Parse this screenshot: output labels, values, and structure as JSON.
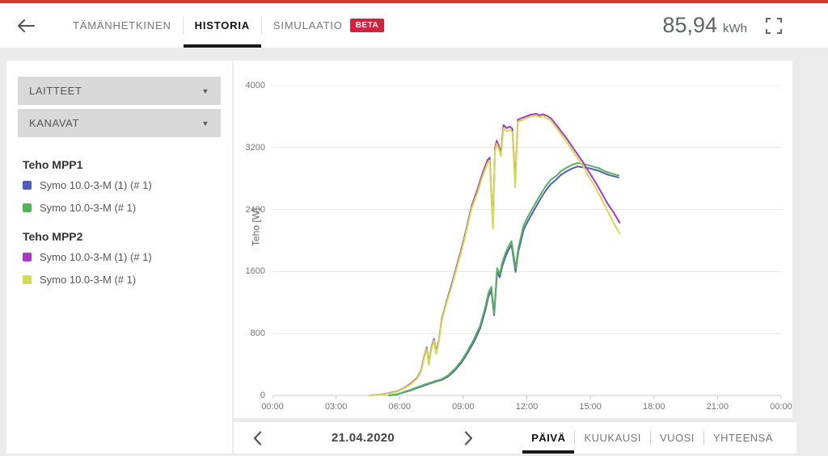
{
  "header": {
    "tabs": [
      {
        "label": "TÄMÄNHETKINEN",
        "active": false
      },
      {
        "label": "HISTORIA",
        "active": true
      },
      {
        "label": "SIMULAATIO",
        "active": false,
        "badge": "BETA"
      }
    ],
    "energy_value": "85,94",
    "energy_unit": "kWh"
  },
  "sidebar": {
    "dropdowns": [
      {
        "label": "LAITTEET"
      },
      {
        "label": "KANAVAT"
      }
    ],
    "legend_groups": [
      {
        "title": "Teho MPP1",
        "items": [
          {
            "label": "Symo 10.0-3-M (1) (# 1)",
            "color": "#4f5fb5"
          },
          {
            "label": "Symo 10.0-3-M (# 1)",
            "color": "#55b25a"
          }
        ]
      },
      {
        "title": "Teho MPP2",
        "items": [
          {
            "label": "Symo 10.0-3-M (1) (# 1)",
            "color": "#a839c0"
          },
          {
            "label": "Symo 10.0-3-M (# 1)",
            "color": "#d4dc4d"
          }
        ]
      }
    ]
  },
  "chart_data": {
    "type": "line",
    "ylabel": "Teho [W]",
    "ylim": [
      0,
      4000
    ],
    "yticks": [
      0,
      800,
      1600,
      2400,
      3200,
      4000
    ],
    "xlim": [
      0,
      24
    ],
    "xtick_hours": [
      0,
      3,
      6,
      9,
      12,
      15,
      18,
      21,
      24
    ],
    "xtick_labels": [
      "00:00",
      "03:00",
      "06:00",
      "09:00",
      "12:00",
      "15:00",
      "18:00",
      "21:00",
      "00:00"
    ],
    "grid": "horizontal",
    "legend_position": "left",
    "series": [
      {
        "id": "mpp1-symo-1",
        "group": "Teho MPP1",
        "name": "Symo 10.0-3-M (1) (# 1)",
        "color": "#4f5fb5",
        "points": [
          [
            5.5,
            0
          ],
          [
            5.9,
            15
          ],
          [
            6.2,
            40
          ],
          [
            6.5,
            65
          ],
          [
            6.8,
            95
          ],
          [
            7.1,
            122
          ],
          [
            7.4,
            152
          ],
          [
            7.7,
            178
          ],
          [
            8.0,
            202
          ],
          [
            8.3,
            248
          ],
          [
            8.6,
            322
          ],
          [
            8.9,
            418
          ],
          [
            9.2,
            545
          ],
          [
            9.5,
            690
          ],
          [
            9.8,
            865
          ],
          [
            10.05,
            1105
          ],
          [
            10.2,
            1285
          ],
          [
            10.33,
            1355
          ],
          [
            10.46,
            1035
          ],
          [
            10.6,
            1595
          ],
          [
            10.72,
            1525
          ],
          [
            10.85,
            1675
          ],
          [
            11.0,
            1795
          ],
          [
            11.15,
            1885
          ],
          [
            11.28,
            1945
          ],
          [
            11.47,
            1595
          ],
          [
            11.6,
            1855
          ],
          [
            11.86,
            2145
          ],
          [
            12.1,
            2275
          ],
          [
            12.37,
            2405
          ],
          [
            12.62,
            2525
          ],
          [
            12.87,
            2635
          ],
          [
            13.12,
            2725
          ],
          [
            13.39,
            2785
          ],
          [
            13.6,
            2845
          ],
          [
            13.83,
            2885
          ],
          [
            14.1,
            2925
          ],
          [
            14.39,
            2955
          ],
          [
            14.65,
            2945
          ],
          [
            14.9,
            2935
          ],
          [
            15.15,
            2918
          ],
          [
            15.42,
            2898
          ],
          [
            15.7,
            2862
          ],
          [
            15.92,
            2842
          ],
          [
            16.15,
            2826
          ],
          [
            16.33,
            2815
          ]
        ]
      },
      {
        "id": "mpp1-symo-2",
        "group": "Teho MPP1",
        "name": "Symo 10.0-3-M (# 1)",
        "color": "#55b25a",
        "points": [
          [
            5.5,
            0
          ],
          [
            5.9,
            18
          ],
          [
            6.2,
            45
          ],
          [
            6.5,
            72
          ],
          [
            6.8,
            102
          ],
          [
            7.1,
            132
          ],
          [
            7.4,
            162
          ],
          [
            7.7,
            188
          ],
          [
            8.0,
            212
          ],
          [
            8.3,
            262
          ],
          [
            8.6,
            342
          ],
          [
            8.9,
            442
          ],
          [
            9.2,
            572
          ],
          [
            9.5,
            722
          ],
          [
            9.8,
            902
          ],
          [
            10.05,
            1152
          ],
          [
            10.2,
            1332
          ],
          [
            10.33,
            1402
          ],
          [
            10.46,
            1062
          ],
          [
            10.6,
            1642
          ],
          [
            10.72,
            1562
          ],
          [
            10.85,
            1722
          ],
          [
            11.0,
            1842
          ],
          [
            11.15,
            1932
          ],
          [
            11.28,
            1992
          ],
          [
            11.47,
            1642
          ],
          [
            11.6,
            1902
          ],
          [
            11.86,
            2202
          ],
          [
            12.1,
            2332
          ],
          [
            12.37,
            2462
          ],
          [
            12.62,
            2582
          ],
          [
            12.87,
            2692
          ],
          [
            13.12,
            2782
          ],
          [
            13.39,
            2832
          ],
          [
            13.6,
            2892
          ],
          [
            13.83,
            2932
          ],
          [
            14.1,
            2972
          ],
          [
            14.39,
            3000
          ],
          [
            14.65,
            2988
          ],
          [
            14.9,
            2972
          ],
          [
            15.15,
            2952
          ],
          [
            15.42,
            2932
          ],
          [
            15.7,
            2892
          ],
          [
            15.92,
            2872
          ],
          [
            16.15,
            2852
          ],
          [
            16.33,
            2840
          ]
        ]
      },
      {
        "id": "mpp2-symo-1",
        "group": "Teho MPP2",
        "name": "Symo 10.0-3-M (1) (# 1)",
        "color": "#a839c0",
        "points": [
          [
            4.6,
            0
          ],
          [
            5.1,
            12
          ],
          [
            5.5,
            30
          ],
          [
            5.9,
            55
          ],
          [
            6.2,
            95
          ],
          [
            6.5,
            150
          ],
          [
            6.8,
            220
          ],
          [
            7.0,
            315
          ],
          [
            7.15,
            490
          ],
          [
            7.28,
            620
          ],
          [
            7.38,
            420
          ],
          [
            7.5,
            620
          ],
          [
            7.62,
            730
          ],
          [
            7.72,
            560
          ],
          [
            7.85,
            710
          ],
          [
            7.98,
            970
          ],
          [
            8.2,
            1200
          ],
          [
            8.45,
            1430
          ],
          [
            8.7,
            1680
          ],
          [
            8.95,
            1930
          ],
          [
            9.15,
            2150
          ],
          [
            9.4,
            2450
          ],
          [
            9.65,
            2640
          ],
          [
            9.9,
            2860
          ],
          [
            10.15,
            3040
          ],
          [
            10.25,
            3070
          ],
          [
            10.4,
            2190
          ],
          [
            10.5,
            3190
          ],
          [
            10.58,
            3290
          ],
          [
            10.68,
            3220
          ],
          [
            10.78,
            3130
          ],
          [
            10.9,
            3490
          ],
          [
            11.05,
            3450
          ],
          [
            11.2,
            3470
          ],
          [
            11.32,
            3440
          ],
          [
            11.45,
            2740
          ],
          [
            11.58,
            3560
          ],
          [
            11.8,
            3585
          ],
          [
            12.0,
            3605
          ],
          [
            12.2,
            3625
          ],
          [
            12.45,
            3635
          ],
          [
            12.6,
            3615
          ],
          [
            12.75,
            3630
          ],
          [
            12.95,
            3610
          ],
          [
            13.15,
            3575
          ],
          [
            13.4,
            3490
          ],
          [
            13.65,
            3400
          ],
          [
            13.9,
            3310
          ],
          [
            14.15,
            3210
          ],
          [
            14.4,
            3110
          ],
          [
            14.65,
            3010
          ],
          [
            14.9,
            2900
          ],
          [
            15.2,
            2770
          ],
          [
            15.5,
            2630
          ],
          [
            15.8,
            2480
          ],
          [
            16.1,
            2360
          ],
          [
            16.38,
            2230
          ]
        ]
      },
      {
        "id": "mpp2-symo-2",
        "group": "Teho MPP2",
        "name": "Symo 10.0-3-M (# 1)",
        "color": "#d4dc4d",
        "points": [
          [
            4.6,
            0
          ],
          [
            5.1,
            10
          ],
          [
            5.5,
            25
          ],
          [
            5.9,
            50
          ],
          [
            6.2,
            90
          ],
          [
            6.5,
            140
          ],
          [
            6.8,
            210
          ],
          [
            7.0,
            300
          ],
          [
            7.15,
            470
          ],
          [
            7.28,
            600
          ],
          [
            7.38,
            395
          ],
          [
            7.5,
            600
          ],
          [
            7.62,
            710
          ],
          [
            7.72,
            535
          ],
          [
            7.85,
            690
          ],
          [
            7.98,
            950
          ],
          [
            8.2,
            1180
          ],
          [
            8.45,
            1400
          ],
          [
            8.7,
            1650
          ],
          [
            8.95,
            1900
          ],
          [
            9.15,
            2120
          ],
          [
            9.4,
            2420
          ],
          [
            9.65,
            2600
          ],
          [
            9.9,
            2820
          ],
          [
            10.15,
            3000
          ],
          [
            10.25,
            3030
          ],
          [
            10.4,
            2150
          ],
          [
            10.5,
            3150
          ],
          [
            10.58,
            3250
          ],
          [
            10.68,
            3180
          ],
          [
            10.78,
            3090
          ],
          [
            10.9,
            3450
          ],
          [
            11.05,
            3410
          ],
          [
            11.2,
            3430
          ],
          [
            11.32,
            3400
          ],
          [
            11.45,
            2690
          ],
          [
            11.58,
            3530
          ],
          [
            11.8,
            3555
          ],
          [
            12.0,
            3580
          ],
          [
            12.2,
            3600
          ],
          [
            12.45,
            3610
          ],
          [
            12.6,
            3590
          ],
          [
            12.75,
            3605
          ],
          [
            12.95,
            3580
          ],
          [
            13.15,
            3545
          ],
          [
            13.4,
            3450
          ],
          [
            13.65,
            3360
          ],
          [
            13.9,
            3270
          ],
          [
            14.15,
            3160
          ],
          [
            14.4,
            3060
          ],
          [
            14.65,
            2960
          ],
          [
            14.9,
            2840
          ],
          [
            15.2,
            2700
          ],
          [
            15.5,
            2550
          ],
          [
            15.8,
            2390
          ],
          [
            16.1,
            2230
          ],
          [
            16.38,
            2090
          ]
        ]
      }
    ]
  },
  "bottom_bar": {
    "date": "21.04.2020",
    "views": [
      {
        "label": "PÄIVÄ",
        "active": true
      },
      {
        "label": "KUUKAUSI",
        "active": false
      },
      {
        "label": "VUOSI",
        "active": false
      },
      {
        "label": "YHTEENSÄ",
        "active": false
      }
    ]
  }
}
